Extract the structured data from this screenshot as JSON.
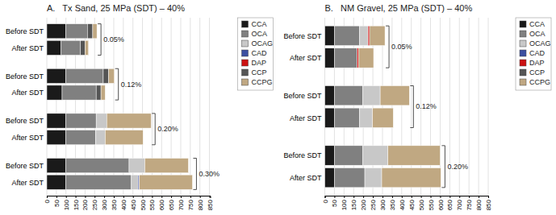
{
  "chart_data": [
    {
      "type": "bar",
      "orientation": "horizontal",
      "stacked": true,
      "title": "A.   Tx Sand, 25 MPa (SDT) – 40%",
      "categories": [
        "Before SDT",
        "After SDT",
        "Before SDT",
        "After SDT",
        "Before SDT",
        "After SDT",
        "Before SDT",
        "After SDT"
      ],
      "annotations": [
        "0.05%",
        "0.12%",
        "0.20%",
        "0.30%"
      ],
      "series": [
        {
          "name": "CCA",
          "color": "#1a1a1a",
          "values": [
            100,
            75,
            100,
            80,
            100,
            100,
            100,
            100
          ]
        },
        {
          "name": "OCA",
          "color": "#808080",
          "values": [
            112,
            100,
            195,
            178,
            158,
            155,
            330,
            342
          ]
        },
        {
          "name": "OCAG",
          "color": "#c8c8c8",
          "values": [
            0,
            0,
            0,
            0,
            55,
            50,
            82,
            35
          ]
        },
        {
          "name": "CAD",
          "color": "#3c4fa0",
          "values": [
            0,
            0,
            0,
            0,
            0,
            0,
            0,
            6
          ]
        },
        {
          "name": "DAP",
          "color": "#cc1111",
          "values": [
            0,
            0,
            0,
            0,
            0,
            0,
            0,
            0
          ]
        },
        {
          "name": "CCP",
          "color": "#555555",
          "values": [
            28,
            25,
            28,
            25,
            0,
            0,
            0,
            0
          ]
        },
        {
          "name": "CCPG",
          "color": "#c0a882",
          "values": [
            22,
            18,
            30,
            22,
            232,
            198,
            228,
            278
          ]
        }
      ],
      "xlim": [
        0,
        854
      ],
      "xticks": [
        0,
        50,
        100,
        150,
        200,
        250,
        300,
        350,
        400,
        450,
        500,
        550,
        600,
        650,
        700,
        750,
        800,
        850
      ],
      "grid": true,
      "legend": "right"
    },
    {
      "type": "bar",
      "orientation": "horizontal",
      "stacked": true,
      "title": "B.   NM Gravel, 25 MPa (SDT) – 40%",
      "categories": [
        "Before SDT",
        "After SDT",
        "Before SDT",
        "After SDT",
        "Before SDT",
        "After SDT"
      ],
      "annotations": [
        "0.05%",
        "0.12%",
        "0.20%"
      ],
      "series": [
        {
          "name": "CCA",
          "color": "#1a1a1a",
          "values": [
            50,
            50,
            50,
            50,
            50,
            50
          ]
        },
        {
          "name": "OCA",
          "color": "#808080",
          "values": [
            130,
            118,
            148,
            130,
            148,
            158
          ]
        },
        {
          "name": "OCAG",
          "color": "#c8c8c8",
          "values": [
            45,
            0,
            90,
            68,
            130,
            88
          ]
        },
        {
          "name": "CAD",
          "color": "#3c4fa0",
          "values": [
            0,
            0,
            0,
            0,
            0,
            0
          ]
        },
        {
          "name": "DAP",
          "color": "#cc1111",
          "values": [
            8,
            8,
            0,
            0,
            0,
            0
          ]
        },
        {
          "name": "CCP",
          "color": "#555555",
          "values": [
            0,
            0,
            0,
            0,
            0,
            0
          ]
        },
        {
          "name": "CCPG",
          "color": "#c0a882",
          "values": [
            80,
            78,
            152,
            108,
            272,
            308
          ]
        }
      ],
      "xlim": [
        0,
        850
      ],
      "xticks": [
        0,
        50,
        100,
        150,
        200,
        250,
        300,
        350,
        400,
        450,
        500,
        550,
        600,
        650,
        700,
        750,
        800,
        850
      ],
      "grid": true,
      "legend": "right"
    }
  ]
}
